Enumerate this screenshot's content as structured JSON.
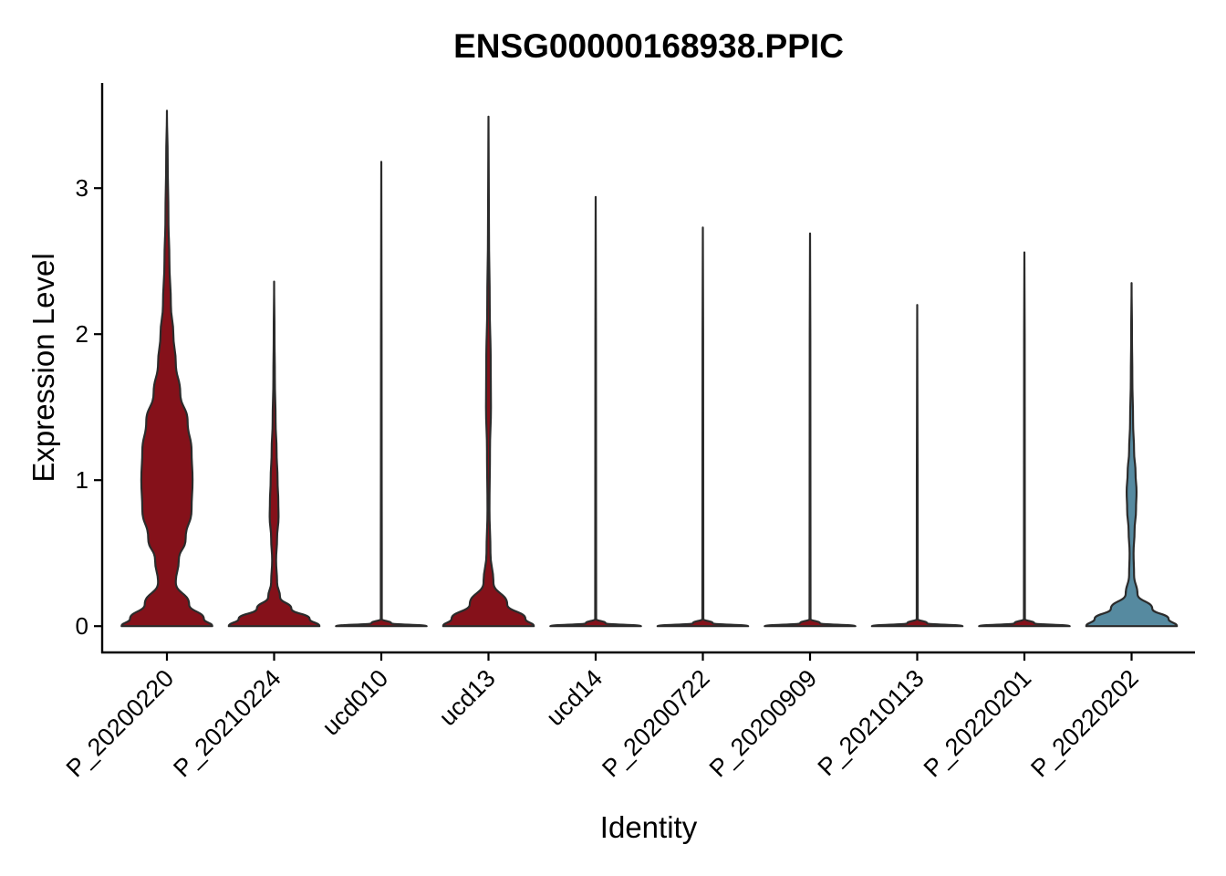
{
  "chart_data": {
    "type": "violin",
    "title": "ENSG00000168938.PPIC",
    "xlabel": "Identity",
    "ylabel": "Expression Level",
    "ylim": [
      -0.18,
      3.72
    ],
    "yticks": [
      0,
      1,
      2,
      3
    ],
    "grid": false,
    "legend": "none",
    "categories": [
      "P_20200220",
      "P_20210224",
      "ucd010",
      "ucd13",
      "ucd14",
      "P_20200722",
      "P_20200909",
      "P_20210113",
      "P_20220201",
      "P_20220202"
    ],
    "colors": [
      "#85111a",
      "#85111a",
      "#85111a",
      "#85111a",
      "#85111a",
      "#85111a",
      "#85111a",
      "#85111a",
      "#85111a",
      "#568aa0"
    ],
    "max_values": [
      3.53,
      2.36,
      3.18,
      3.49,
      2.94,
      2.73,
      2.69,
      2.2,
      2.56,
      2.35
    ],
    "density_profiles": [
      [
        [
          0,
          0.92
        ],
        [
          0.05,
          0.75
        ],
        [
          0.15,
          0.45
        ],
        [
          0.3,
          0.18
        ],
        [
          0.45,
          0.24
        ],
        [
          0.6,
          0.38
        ],
        [
          0.8,
          0.5
        ],
        [
          1.0,
          0.52
        ],
        [
          1.2,
          0.5
        ],
        [
          1.4,
          0.42
        ],
        [
          1.6,
          0.27
        ],
        [
          1.8,
          0.18
        ],
        [
          2.0,
          0.13
        ],
        [
          2.2,
          0.08
        ],
        [
          2.5,
          0.05
        ],
        [
          2.8,
          0.03
        ],
        [
          3.2,
          0.015
        ],
        [
          3.53,
          0
        ]
      ],
      [
        [
          0,
          0.92
        ],
        [
          0.05,
          0.72
        ],
        [
          0.12,
          0.35
        ],
        [
          0.2,
          0.12
        ],
        [
          0.3,
          0.06
        ],
        [
          0.45,
          0.04
        ],
        [
          0.6,
          0.06
        ],
        [
          0.75,
          0.09
        ],
        [
          0.85,
          0.085
        ],
        [
          1.0,
          0.07
        ],
        [
          1.2,
          0.05
        ],
        [
          1.4,
          0.03
        ],
        [
          1.7,
          0.015
        ],
        [
          2.0,
          0.008
        ],
        [
          2.36,
          0
        ]
      ],
      [
        [
          0,
          0.92
        ],
        [
          0.02,
          0.2
        ],
        [
          0.05,
          0.01
        ],
        [
          0.5,
          0.01
        ],
        [
          1.0,
          0.008
        ],
        [
          2.0,
          0.006
        ],
        [
          3.18,
          0
        ]
      ],
      [
        [
          0,
          0.92
        ],
        [
          0.05,
          0.75
        ],
        [
          0.15,
          0.38
        ],
        [
          0.3,
          0.1
        ],
        [
          0.5,
          0.04
        ],
        [
          0.8,
          0.02
        ],
        [
          1.2,
          0.03
        ],
        [
          1.5,
          0.05
        ],
        [
          1.8,
          0.045
        ],
        [
          2.2,
          0.025
        ],
        [
          2.7,
          0.01
        ],
        [
          3.1,
          0.005
        ],
        [
          3.49,
          0
        ]
      ],
      [
        [
          0,
          0.92
        ],
        [
          0.02,
          0.2
        ],
        [
          0.05,
          0.01
        ],
        [
          1.0,
          0.008
        ],
        [
          2.0,
          0.006
        ],
        [
          2.94,
          0
        ]
      ],
      [
        [
          0,
          0.92
        ],
        [
          0.02,
          0.2
        ],
        [
          0.05,
          0.01
        ],
        [
          1.0,
          0.008
        ],
        [
          2.0,
          0.006
        ],
        [
          2.73,
          0
        ]
      ],
      [
        [
          0,
          0.92
        ],
        [
          0.02,
          0.2
        ],
        [
          0.05,
          0.01
        ],
        [
          1.0,
          0.008
        ],
        [
          2.0,
          0.006
        ],
        [
          2.69,
          0
        ]
      ],
      [
        [
          0,
          0.92
        ],
        [
          0.02,
          0.2
        ],
        [
          0.05,
          0.01
        ],
        [
          1.0,
          0.008
        ],
        [
          2.2,
          0
        ]
      ],
      [
        [
          0,
          0.92
        ],
        [
          0.02,
          0.2
        ],
        [
          0.05,
          0.01
        ],
        [
          1.0,
          0.008
        ],
        [
          2.0,
          0.006
        ],
        [
          2.56,
          0
        ]
      ],
      [
        [
          0,
          0.92
        ],
        [
          0.05,
          0.75
        ],
        [
          0.12,
          0.42
        ],
        [
          0.22,
          0.12
        ],
        [
          0.35,
          0.05
        ],
        [
          0.5,
          0.04
        ],
        [
          0.65,
          0.06
        ],
        [
          0.8,
          0.09
        ],
        [
          0.92,
          0.1
        ],
        [
          1.05,
          0.08
        ],
        [
          1.2,
          0.05
        ],
        [
          1.4,
          0.03
        ],
        [
          1.7,
          0.015
        ],
        [
          2.0,
          0.008
        ],
        [
          2.35,
          0
        ]
      ]
    ]
  }
}
